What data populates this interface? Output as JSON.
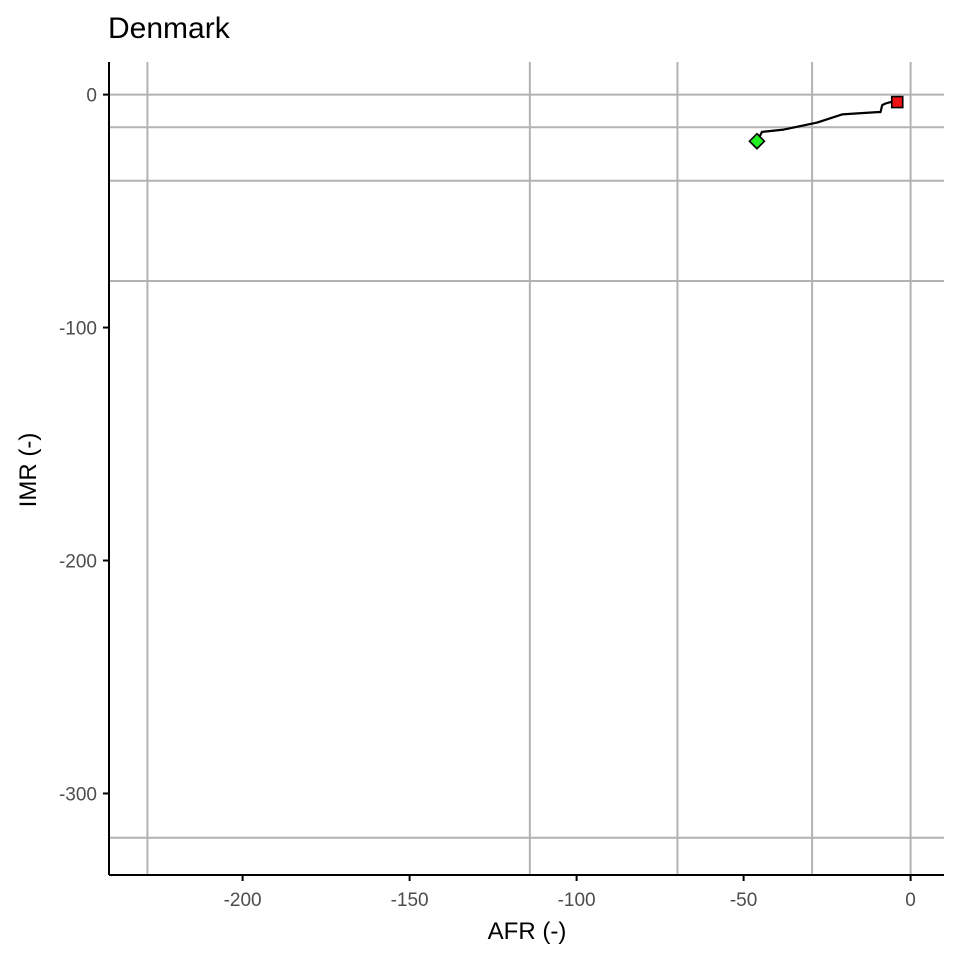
{
  "chart_data": {
    "type": "line",
    "title": "Denmark",
    "xlabel": "AFR (-)",
    "ylabel": "IMR (-)",
    "xlim": [
      -240,
      10
    ],
    "ylim": [
      -335,
      14
    ],
    "x_ticks": [
      -200,
      -150,
      -100,
      -50,
      0
    ],
    "x_tick_labels": [
      "-200",
      "-150",
      "-100",
      "-50",
      "0"
    ],
    "y_ticks": [
      0,
      -100,
      -200,
      -300
    ],
    "y_tick_labels": [
      "0",
      "-100",
      "-200",
      "-300"
    ],
    "grid": {
      "vertical_x": [
        -228.5,
        -114,
        -69.8,
        -29.5,
        0
      ],
      "horizontal_y": [
        0,
        -14,
        -37,
        -80,
        -319
      ]
    },
    "series": [
      {
        "values_xy": [
          [
            -46,
            -20
          ],
          [
            -44.5,
            -16
          ],
          [
            -38,
            -15
          ],
          [
            -28,
            -12
          ],
          [
            -20.5,
            -8.5
          ],
          [
            -10,
            -7.5
          ],
          [
            -9,
            -7.5
          ],
          [
            -8.5,
            -4.5
          ],
          [
            -7.5,
            -3.8
          ],
          [
            -6,
            -3.2
          ],
          [
            -4,
            -3.2
          ]
        ],
        "color": "#000000"
      }
    ],
    "markers": [
      {
        "shape": "diamond",
        "x": -46,
        "y": -20,
        "color": "#22ee22"
      },
      {
        "shape": "square",
        "x": -4,
        "y": -3.2,
        "color": "#ee1111"
      }
    ]
  }
}
